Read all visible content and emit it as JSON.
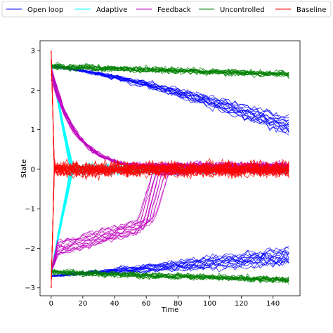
{
  "chart_data": {
    "type": "line",
    "title": "",
    "xlabel": "Time",
    "ylabel": "State",
    "xlim": [
      -7,
      157
    ],
    "ylim": [
      -3.2,
      3.25
    ],
    "x_ticks": [
      0,
      20,
      40,
      60,
      80,
      100,
      120,
      140
    ],
    "y_ticks": [
      -3,
      -2,
      -1,
      0,
      1,
      2,
      3
    ],
    "grid": false,
    "legend_position": "top",
    "series": [
      {
        "name": "Open loop",
        "color": "#0000ff",
        "trajectories": 30,
        "groups": [
          {
            "start": 2.6,
            "end_range": [
              0.9,
              1.7
            ]
          },
          {
            "start": -2.7,
            "end_range": [
              -2.4,
              -1.6
            ]
          }
        ]
      },
      {
        "name": "Adaptive",
        "color": "#00ffff",
        "trajectories": 30,
        "groups": [
          {
            "start": 2.6,
            "reaches_zero_at": 12,
            "end": 0.0
          },
          {
            "start": -2.6,
            "reaches_zero_at": 12,
            "end": 0.0
          }
        ]
      },
      {
        "name": "Feedback",
        "color": "#c000c0",
        "trajectories": 30,
        "groups": [
          {
            "start": 2.6,
            "converges_by": 60,
            "end": 0.1
          },
          {
            "start": -2.6,
            "converges_by": 60,
            "end": 0.1
          }
        ]
      },
      {
        "name": "Uncontrolled",
        "color": "#008000",
        "trajectories": 30,
        "groups": [
          {
            "start": 2.6,
            "end": 2.4
          },
          {
            "start": -2.6,
            "end": -2.8
          }
        ]
      },
      {
        "name": "Baseline",
        "color": "#ff0000",
        "trajectories": 30,
        "groups": [
          {
            "start": 3.0,
            "reaches_zero_at": 1,
            "end": 0.0
          },
          {
            "start": -3.0,
            "reaches_zero_at": 1,
            "end": 0.0
          }
        ]
      }
    ]
  }
}
